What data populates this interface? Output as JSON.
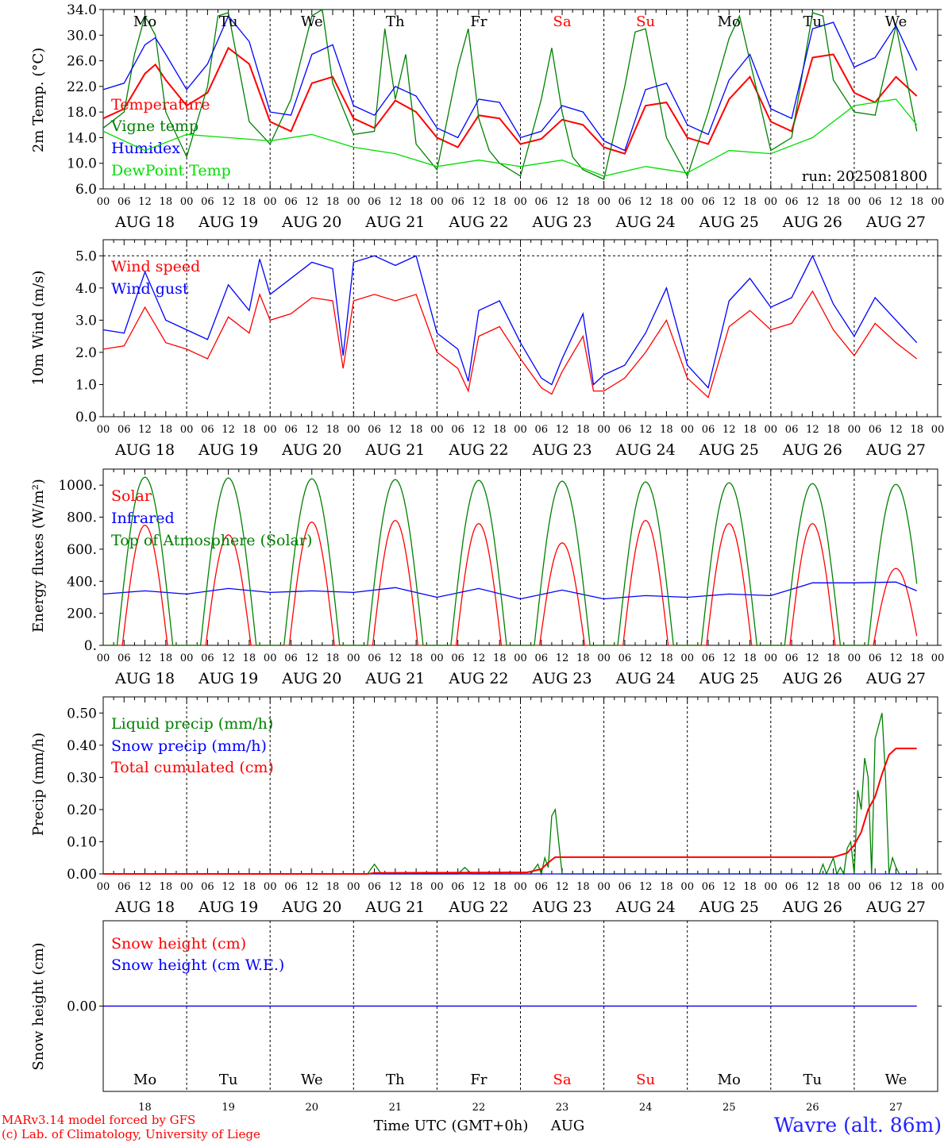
{
  "run_label": "run: 2025081800",
  "x_axis": {
    "hour_ticks": [
      "00",
      "06",
      "12",
      "18"
    ],
    "final_tick": "00",
    "dates": [
      "AUG 18",
      "AUG 19",
      "AUG 20",
      "AUG 21",
      "AUG 22",
      "AUG 23",
      "AUG 24",
      "AUG 25",
      "AUG 26",
      "AUG 27"
    ],
    "weekdays": [
      "Mo",
      "Tu",
      "We",
      "Th",
      "Fr",
      "Sa",
      "Su",
      "Mo",
      "Tu",
      "We"
    ],
    "weekday_colors": [
      "#000000",
      "#000000",
      "#000000",
      "#000000",
      "#000000",
      "#ff0000",
      "#ff0000",
      "#000000",
      "#000000",
      "#000000"
    ],
    "day_numbers": [
      "18",
      "19",
      "20",
      "21",
      "22",
      "23",
      "24",
      "25",
      "26",
      "27"
    ],
    "title": "Time UTC (GMT+0h)",
    "month": "AUG"
  },
  "footer": {
    "model_line": "MARv3.14 model forced by GFS",
    "credit_line": "(c) Lab. of Climatology, University of Liege",
    "location": "Wavre (alt. 86m)"
  },
  "colors": {
    "red": "#ff0000",
    "green": "#008000",
    "blue": "#0000ff",
    "lime": "#00dd00",
    "grid": "#000000"
  },
  "chart_data": [
    {
      "type": "line",
      "ylabel": "2m Temp. (°C)",
      "ylim": [
        6.0,
        34.0
      ],
      "yticks": [
        "6.0",
        "10.0",
        "14.0",
        "18.0",
        "22.0",
        "26.0",
        "30.0",
        "34.0"
      ],
      "x_unit": "hours since 2025-08-18 00 UTC",
      "series": [
        {
          "name": "Temperature",
          "color": "#ff0000",
          "x": [
            0,
            6,
            12,
            15,
            18,
            24,
            30,
            36,
            42,
            48,
            54,
            60,
            66,
            72,
            78,
            84,
            90,
            96,
            102,
            108,
            114,
            120,
            126,
            132,
            138,
            144,
            150,
            156,
            162,
            168,
            174,
            180,
            186,
            192,
            198,
            204,
            210,
            216,
            222,
            228,
            234
          ],
          "y": [
            17.0,
            18.5,
            24.0,
            25.4,
            23.0,
            19.0,
            21.0,
            28.0,
            25.5,
            16.5,
            15.0,
            22.5,
            23.5,
            17.0,
            15.5,
            19.8,
            18.0,
            14.0,
            12.5,
            17.5,
            17.0,
            13.0,
            13.8,
            16.8,
            16.0,
            12.5,
            11.5,
            19.0,
            19.5,
            14.0,
            13.0,
            20.0,
            23.5,
            16.5,
            15.0,
            26.5,
            27.0,
            21.0,
            19.5,
            23.5,
            20.5
          ]
        },
        {
          "name": "Vigne temp",
          "color": "#008000",
          "x": [
            0,
            6,
            9,
            12,
            15,
            18,
            24,
            30,
            33,
            36,
            42,
            48,
            54,
            60,
            63,
            66,
            72,
            78,
            81,
            84,
            87,
            90,
            96,
            102,
            105,
            108,
            111,
            114,
            120,
            126,
            129,
            132,
            135,
            138,
            144,
            150,
            153,
            156,
            162,
            168,
            174,
            180,
            183,
            186,
            192,
            198,
            204,
            207,
            210,
            216,
            222,
            228,
            234
          ],
          "y": [
            15.5,
            18.0,
            27.0,
            33.0,
            30.0,
            18.0,
            11.0,
            22.0,
            33.0,
            33.5,
            16.5,
            13.0,
            20.0,
            33.0,
            34.0,
            22.5,
            14.5,
            15.0,
            31.0,
            20.0,
            27.0,
            13.0,
            9.0,
            25.0,
            31.0,
            17.0,
            12.0,
            10.0,
            8.0,
            20.0,
            28.0,
            18.0,
            11.0,
            9.0,
            7.5,
            22.0,
            30.5,
            31.0,
            14.0,
            8.0,
            18.0,
            29.5,
            33.0,
            26.0,
            12.0,
            14.0,
            33.5,
            33.0,
            23.0,
            18.0,
            17.5,
            31.5,
            15.0
          ]
        },
        {
          "name": "Humidex",
          "color": "#0000ff",
          "x": [
            0,
            6,
            12,
            15,
            18,
            24,
            30,
            36,
            42,
            48,
            54,
            60,
            66,
            72,
            78,
            84,
            90,
            96,
            102,
            108,
            114,
            120,
            126,
            132,
            138,
            144,
            150,
            156,
            162,
            168,
            174,
            180,
            186,
            192,
            198,
            204,
            210,
            216,
            222,
            228,
            234
          ],
          "y": [
            21.5,
            22.5,
            28.5,
            29.6,
            27.0,
            21.5,
            25.5,
            33.0,
            29.0,
            18.0,
            17.5,
            27.0,
            28.5,
            19.0,
            17.5,
            22.0,
            20.5,
            15.5,
            14.0,
            20.0,
            19.5,
            14.0,
            15.0,
            19.0,
            18.0,
            13.5,
            12.0,
            21.5,
            22.5,
            16.0,
            14.5,
            23.0,
            27.0,
            18.5,
            17.0,
            31.0,
            32.0,
            25.0,
            26.5,
            31.5,
            24.5
          ]
        },
        {
          "name": "DewPoint Temp",
          "color": "#00dd00",
          "x": [
            0,
            12,
            24,
            36,
            48,
            60,
            72,
            84,
            96,
            108,
            120,
            132,
            144,
            156,
            168,
            180,
            192,
            204,
            216,
            228,
            234
          ],
          "y": [
            15.0,
            12.0,
            14.5,
            14.0,
            13.5,
            14.5,
            12.5,
            11.5,
            9.5,
            10.5,
            9.5,
            10.5,
            8.0,
            9.5,
            8.5,
            12.0,
            11.5,
            14.0,
            19.0,
            20.0,
            16.0
          ]
        }
      ]
    },
    {
      "type": "line",
      "ylabel": "10m Wind (m/s)",
      "ylim": [
        0.0,
        5.5
      ],
      "yticks": [
        "0.0",
        "1.0",
        "2.0",
        "3.0",
        "4.0",
        "5.0"
      ],
      "reference_line": 5.0,
      "series": [
        {
          "name": "Wind speed",
          "color": "#ff0000",
          "x": [
            0,
            6,
            12,
            18,
            24,
            30,
            36,
            42,
            45,
            48,
            54,
            60,
            66,
            69,
            72,
            78,
            84,
            90,
            96,
            102,
            105,
            108,
            114,
            120,
            126,
            129,
            132,
            138,
            141,
            144,
            150,
            156,
            162,
            168,
            174,
            180,
            186,
            192,
            198,
            204,
            210,
            216,
            222,
            228,
            234
          ],
          "y": [
            2.1,
            2.2,
            3.4,
            2.3,
            2.1,
            1.8,
            3.1,
            2.6,
            3.8,
            3.0,
            3.2,
            3.7,
            3.6,
            1.5,
            3.6,
            3.8,
            3.6,
            3.8,
            2.0,
            1.5,
            0.8,
            2.5,
            2.8,
            1.8,
            0.9,
            0.7,
            1.4,
            2.5,
            0.8,
            0.8,
            1.2,
            2.0,
            3.0,
            1.2,
            0.6,
            2.8,
            3.3,
            2.7,
            2.9,
            3.9,
            2.7,
            1.9,
            2.9,
            2.3,
            1.8
          ]
        },
        {
          "name": "Wind gust",
          "color": "#0000ff",
          "x": [
            0,
            6,
            12,
            18,
            24,
            30,
            36,
            42,
            45,
            48,
            54,
            60,
            66,
            69,
            72,
            78,
            84,
            90,
            96,
            102,
            105,
            108,
            114,
            120,
            126,
            129,
            132,
            138,
            141,
            144,
            150,
            156,
            162,
            168,
            174,
            180,
            186,
            192,
            198,
            204,
            210,
            216,
            222,
            228,
            234
          ],
          "y": [
            2.7,
            2.6,
            4.5,
            3.0,
            2.7,
            2.4,
            4.1,
            3.3,
            4.9,
            3.8,
            4.3,
            4.8,
            4.6,
            1.9,
            4.8,
            5.0,
            4.7,
            5.0,
            2.6,
            2.1,
            1.1,
            3.3,
            3.6,
            2.3,
            1.2,
            1.0,
            1.8,
            3.2,
            1.0,
            1.3,
            1.6,
            2.6,
            4.0,
            1.6,
            0.9,
            3.6,
            4.3,
            3.4,
            3.7,
            5.0,
            3.5,
            2.5,
            3.7,
            3.0,
            2.3
          ]
        }
      ]
    },
    {
      "type": "line",
      "ylabel": "Energy fluxes (W/m²)",
      "ylim": [
        0,
        1100
      ],
      "yticks": [
        "0.",
        "200.",
        "400.",
        "600.",
        "800.",
        "1000."
      ],
      "series": [
        {
          "name": "Solar",
          "color": "#ff0000",
          "peaks": [
            750,
            690,
            770,
            780,
            760,
            640,
            780,
            760,
            760,
            480
          ]
        },
        {
          "name": "Infrared",
          "color": "#0000ff",
          "x": [
            0,
            12,
            24,
            36,
            48,
            60,
            72,
            84,
            96,
            108,
            120,
            132,
            144,
            156,
            168,
            180,
            192,
            204,
            216,
            228,
            234
          ],
          "y": [
            320,
            340,
            320,
            355,
            330,
            340,
            330,
            360,
            300,
            355,
            290,
            345,
            290,
            310,
            300,
            320,
            310,
            390,
            390,
            395,
            340
          ]
        },
        {
          "name": "Top of Atmosphere (Solar)",
          "color": "#008000",
          "peaks": [
            1050,
            1045,
            1040,
            1035,
            1030,
            1025,
            1020,
            1015,
            1010,
            1005
          ]
        }
      ]
    },
    {
      "type": "line",
      "ylabel": "Precip (mm/h)",
      "ylim": [
        0.0,
        0.55
      ],
      "yticks": [
        "0.00",
        "0.10",
        "0.20",
        "0.30",
        "0.40",
        "0.50"
      ],
      "series": [
        {
          "name": "Liquid precip (mm/h)",
          "color": "#008000",
          "x": [
            0,
            76,
            78,
            80,
            96,
            102,
            104,
            106,
            120,
            123,
            125,
            126,
            127,
            128,
            129,
            130,
            132,
            204,
            206,
            207,
            208,
            210,
            211,
            212,
            213,
            214,
            215,
            216,
            217,
            218,
            219,
            220,
            221,
            222,
            224,
            225,
            226,
            227,
            228,
            229,
            230,
            232,
            234
          ],
          "y": [
            0,
            0,
            0.03,
            0,
            0,
            0,
            0.02,
            0,
            0,
            0,
            0.03,
            0,
            0.05,
            0.02,
            0.18,
            0.2,
            0,
            0,
            0,
            0.03,
            0,
            0.05,
            0,
            0.02,
            0,
            0.08,
            0.1,
            0,
            0.26,
            0.2,
            0.36,
            0.3,
            0,
            0.42,
            0.5,
            0.3,
            0,
            0.05,
            0.02,
            0,
            0,
            0,
            0
          ]
        },
        {
          "name": "Snow precip (mm/h)",
          "color": "#0000ff",
          "x": [
            0,
            234
          ],
          "y": [
            0,
            0
          ]
        },
        {
          "name": "Total cumulated (cm)",
          "color": "#ff0000",
          "x": [
            0,
            76,
            78,
            122,
            126,
            128,
            130,
            132,
            210,
            214,
            216,
            218,
            220,
            222,
            224,
            226,
            228,
            230,
            234
          ],
          "y": [
            0,
            0,
            0.003,
            0.005,
            0.015,
            0.035,
            0.052,
            0.052,
            0.052,
            0.065,
            0.09,
            0.13,
            0.2,
            0.24,
            0.31,
            0.37,
            0.39,
            0.39,
            0.39
          ]
        }
      ]
    },
    {
      "type": "line",
      "ylabel": "Snow height (cm)",
      "yticks": [
        "0.00"
      ],
      "series": [
        {
          "name": "Snow height (cm)",
          "color": "#ff0000",
          "x": [
            0,
            234
          ],
          "y": [
            0,
            0
          ]
        },
        {
          "name": "Snow height (cm W.E.)",
          "color": "#0000ff",
          "x": [
            0,
            234
          ],
          "y": [
            0,
            0
          ]
        }
      ]
    }
  ]
}
